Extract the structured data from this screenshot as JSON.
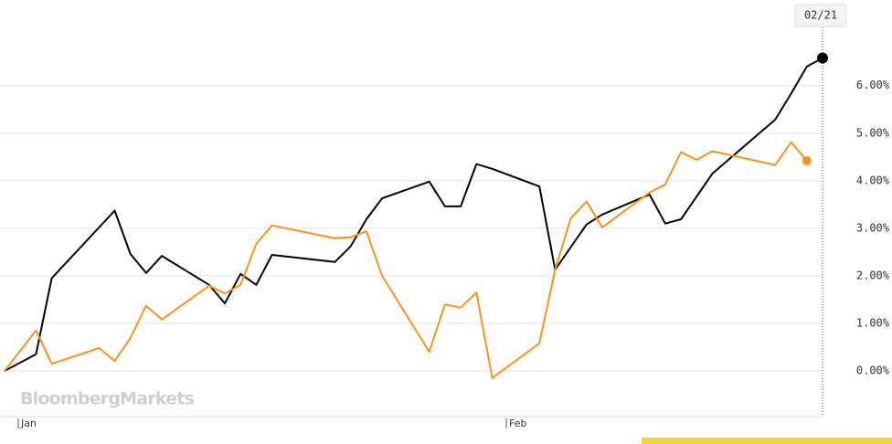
{
  "chart_data": {
    "type": "line",
    "crosshair": "02/21",
    "watermark": "BloombergMarkets",
    "xlim": [
      "12/31",
      "02/21"
    ],
    "xticks": [
      {
        "value": "01/01",
        "label": "Jan"
      },
      {
        "value": "02/01",
        "label": "Feb"
      }
    ],
    "ylim": [
      -0.96,
      7.8
    ],
    "yticks": [
      {
        "value": 0,
        "label": "0.00%"
      },
      {
        "value": 1,
        "label": "1.00%"
      },
      {
        "value": 2,
        "label": "2.00%"
      },
      {
        "value": 3,
        "label": "3.00%"
      },
      {
        "value": 4,
        "label": "4.00%"
      },
      {
        "value": 5,
        "label": "5.00%"
      },
      {
        "value": 6,
        "label": "6.00%"
      }
    ],
    "grid": true,
    "series": [
      {
        "color": "#000000",
        "x": [
          "12/31",
          "01/02",
          "01/03",
          "01/07",
          "01/08",
          "01/09",
          "01/10",
          "01/13",
          "01/14",
          "01/15",
          "01/16",
          "01/17",
          "01/21",
          "01/22",
          "01/23",
          "01/24",
          "01/27",
          "01/28",
          "01/29",
          "01/30",
          "01/31",
          "02/03",
          "02/04",
          "02/06",
          "02/07",
          "02/10",
          "02/11",
          "02/12",
          "02/14",
          "02/18",
          "02/19",
          "02/20",
          "02/21"
        ],
        "values": [
          0,
          0.35,
          1.95,
          3.37,
          2.46,
          2.06,
          2.42,
          1.81,
          1.42,
          2.04,
          1.81,
          2.44,
          2.29,
          2.62,
          3.19,
          3.63,
          3.98,
          3.46,
          3.46,
          4.35,
          4.25,
          3.88,
          2.13,
          3.08,
          3.29,
          3.71,
          3.1,
          3.19,
          4.15,
          5.29,
          5.83,
          6.4,
          6.58
        ]
      },
      {
        "color": "#f7931e",
        "x": [
          "12/31",
          "01/02",
          "01/03",
          "01/06",
          "01/07",
          "01/08",
          "01/09",
          "01/10",
          "01/13",
          "01/14",
          "01/15",
          "01/16",
          "01/17",
          "01/21",
          "01/22",
          "01/23",
          "01/24",
          "01/27",
          "01/28",
          "01/29",
          "01/30",
          "01/31",
          "02/03",
          "02/04",
          "02/05",
          "02/06",
          "02/07",
          "02/10",
          "02/11",
          "02/12",
          "02/13",
          "02/14",
          "02/18",
          "02/19",
          "02/20"
        ],
        "values": [
          0,
          0.85,
          0.15,
          0.48,
          0.21,
          0.69,
          1.37,
          1.08,
          1.79,
          1.63,
          1.81,
          2.67,
          3.06,
          2.79,
          2.81,
          2.94,
          2.0,
          0.4,
          1.4,
          1.33,
          1.65,
          -0.15,
          0.58,
          2.13,
          3.21,
          3.56,
          3.02,
          3.75,
          3.92,
          4.6,
          4.44,
          4.62,
          4.33,
          4.81,
          4.42
        ]
      }
    ]
  }
}
